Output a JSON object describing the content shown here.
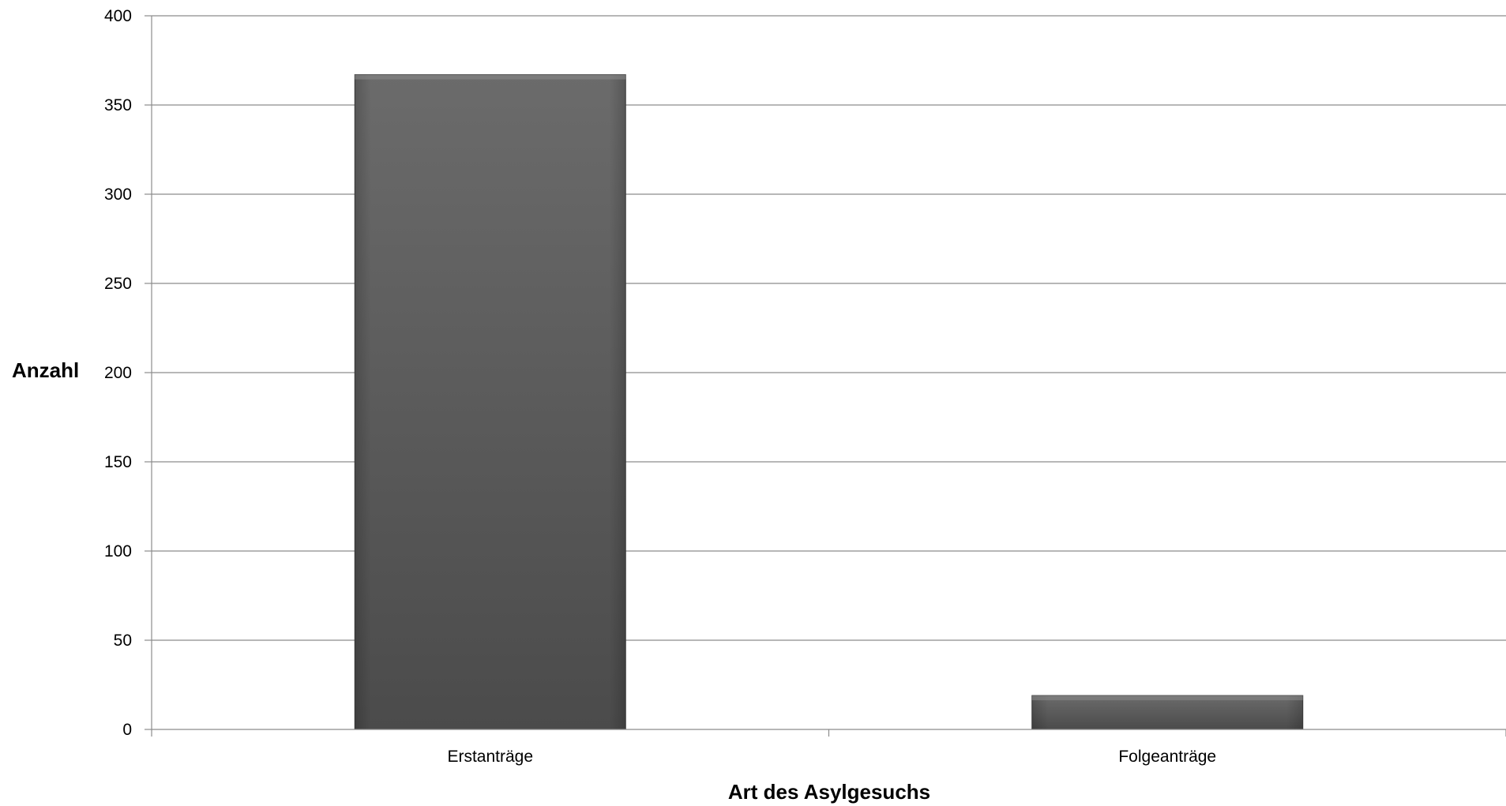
{
  "chart_data": {
    "type": "bar",
    "categories": [
      "Erstanträge",
      "Folgeanträge"
    ],
    "values": [
      367,
      19
    ],
    "title": "",
    "xlabel": "Art des Asylgesuchs",
    "ylabel": "Anzahl",
    "ylim": [
      0,
      400
    ],
    "yticks": [
      0,
      50,
      100,
      150,
      200,
      250,
      300,
      350,
      400
    ],
    "grid": true,
    "legend": "none",
    "colors": {
      "bar_top": "#6b6b6b",
      "bar_bottom": "#4b4b4b",
      "bar_edge": "#3a3a3a",
      "grid": "#8c8c8c",
      "axis": "#8c8c8c"
    }
  }
}
